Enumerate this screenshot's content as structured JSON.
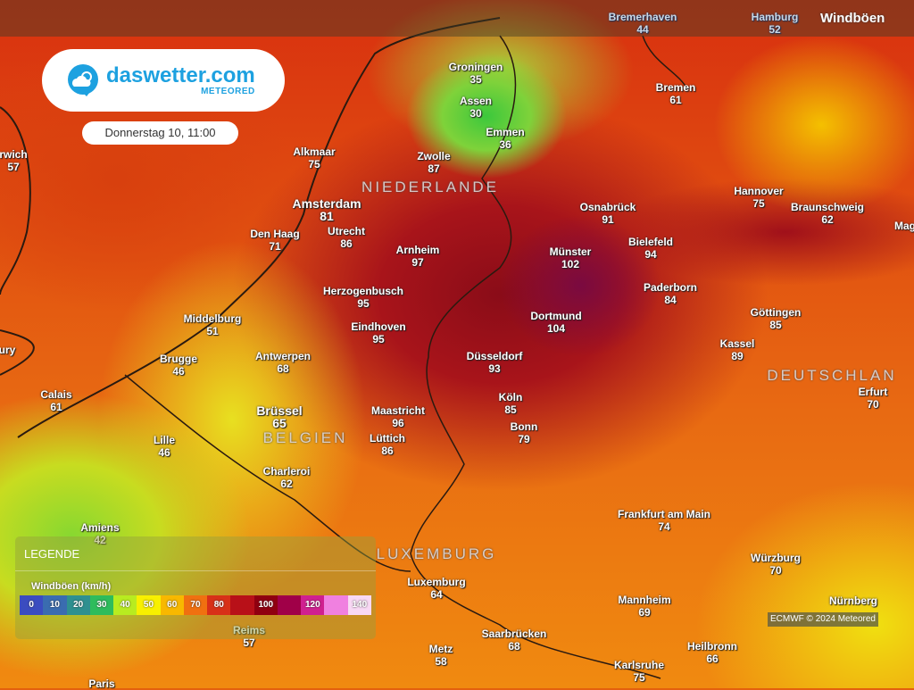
{
  "header": {
    "title": "Windböen",
    "date": "Donnerstag 10, 11:00"
  },
  "logo": {
    "name": "daswetter.com",
    "sub": "METEORED",
    "color": "#1da1e0"
  },
  "legend": {
    "title": "LEGENDE",
    "unit": "Windböen (km/h)",
    "scale": [
      {
        "label": "0",
        "color": "#3b4cc0"
      },
      {
        "label": "10",
        "color": "#3a6cb0"
      },
      {
        "label": "20",
        "color": "#2f9090"
      },
      {
        "label": "30",
        "color": "#2ebc5c"
      },
      {
        "label": "40",
        "color": "#b8ec20"
      },
      {
        "label": "50",
        "color": "#f8f000"
      },
      {
        "label": "60",
        "color": "#f8b800"
      },
      {
        "label": "70",
        "color": "#f07010"
      },
      {
        "label": "80",
        "color": "#d83018"
      },
      {
        "label": "",
        "color": "#b81018"
      },
      {
        "label": "100",
        "color": "#900010"
      },
      {
        "label": "",
        "color": "#a00048"
      },
      {
        "label": "120",
        "color": "#d02090"
      },
      {
        "label": "",
        "color": "#f080e0"
      },
      {
        "label": "140",
        "color": "#f8d8f4"
      }
    ]
  },
  "credit": "ECMWF © 2024 Meteored",
  "countries": [
    "NIEDERLANDE",
    "BELGIEN",
    "LUXEMBURG",
    "DEUTSCHLAN"
  ],
  "cities": [
    {
      "name": "Bremerhaven",
      "value": "44"
    },
    {
      "name": "Hamburg",
      "value": "52"
    },
    {
      "name": "Groningen",
      "value": "35"
    },
    {
      "name": "Assen",
      "value": "30"
    },
    {
      "name": "Emmen",
      "value": "36"
    },
    {
      "name": "Bremen",
      "value": "61"
    },
    {
      "name": "rwich",
      "value": "57"
    },
    {
      "name": "Alkmaar",
      "value": "75"
    },
    {
      "name": "Zwolle",
      "value": "87"
    },
    {
      "name": "Amsterdam",
      "value": "81"
    },
    {
      "name": "Osnabrück",
      "value": "91"
    },
    {
      "name": "Hannover",
      "value": "75"
    },
    {
      "name": "Braunschweig",
      "value": "62"
    },
    {
      "name": "Mag",
      "value": ""
    },
    {
      "name": "Den Haag",
      "value": "71"
    },
    {
      "name": "Utrecht",
      "value": "86"
    },
    {
      "name": "Arnheim",
      "value": "97"
    },
    {
      "name": "Münster",
      "value": "102"
    },
    {
      "name": "Bielefeld",
      "value": "94"
    },
    {
      "name": "Herzogenbusch",
      "value": "95"
    },
    {
      "name": "Paderborn",
      "value": "84"
    },
    {
      "name": "Middelburg",
      "value": "51"
    },
    {
      "name": "Eindhoven",
      "value": "95"
    },
    {
      "name": "Dortmund",
      "value": "104"
    },
    {
      "name": "Göttingen",
      "value": "85"
    },
    {
      "name": "ury",
      "value": ""
    },
    {
      "name": "Kassel",
      "value": "89"
    },
    {
      "name": "Brugge",
      "value": "46"
    },
    {
      "name": "Antwerpen",
      "value": "68"
    },
    {
      "name": "Düsseldorf",
      "value": "93"
    },
    {
      "name": "Calais",
      "value": "61"
    },
    {
      "name": "Erfurt",
      "value": "70"
    },
    {
      "name": "Köln",
      "value": "85"
    },
    {
      "name": "Brüssel",
      "value": "65"
    },
    {
      "name": "Maastricht",
      "value": "96"
    },
    {
      "name": "Bonn",
      "value": "79"
    },
    {
      "name": "Lille",
      "value": "46"
    },
    {
      "name": "Lüttich",
      "value": "86"
    },
    {
      "name": "Charleroi",
      "value": "62"
    },
    {
      "name": "Frankfurt am Main",
      "value": "74"
    },
    {
      "name": "Amiens",
      "value": "42"
    },
    {
      "name": "Würzburg",
      "value": "70"
    },
    {
      "name": "Luxemburg",
      "value": "64"
    },
    {
      "name": "Mannheim",
      "value": "69"
    },
    {
      "name": "Nürnberg",
      "value": ""
    },
    {
      "name": "Reims",
      "value": "57"
    },
    {
      "name": "Saarbrücken",
      "value": "68"
    },
    {
      "name": "Metz",
      "value": "58"
    },
    {
      "name": "Heilbronn",
      "value": "66"
    },
    {
      "name": "Karlsruhe",
      "value": "75"
    },
    {
      "name": "Paris",
      "value": ""
    }
  ]
}
